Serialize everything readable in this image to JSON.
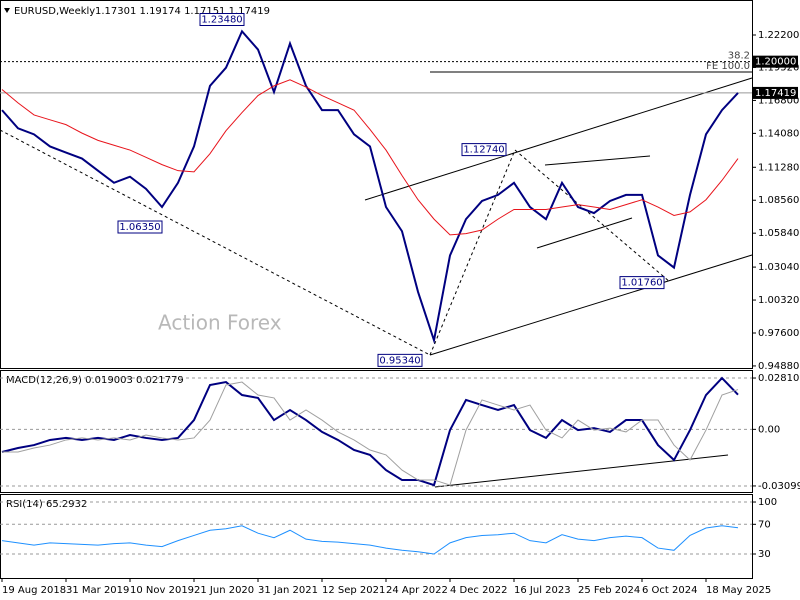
{
  "chart_data": [
    {
      "type": "line",
      "title": "EURUSD,Weekly",
      "subtitle": "1.17301 1.19174 1.17151 1.17419",
      "watermark": "Action Forex",
      "categories": [
        "19 Aug 2018",
        null,
        null,
        null,
        "31 Mar 2019",
        null,
        null,
        null,
        "10 Nov 2019",
        null,
        null,
        null,
        "21 Jun 2020",
        null,
        null,
        null,
        "31 Jan 2021",
        null,
        null,
        null,
        "12 Sep 2021",
        null,
        null,
        null,
        "24 Apr 2022",
        null,
        null,
        null,
        "4 Dec 2022",
        null,
        null,
        null,
        "16 Jul 2023",
        null,
        null,
        null,
        "25 Feb 2024",
        null,
        null,
        null,
        "6 Oct 2024",
        null,
        null,
        null,
        "18 May 2025",
        null,
        null
      ],
      "series": [
        {
          "color": "#000080",
          "values": [
            1.16,
            1.145,
            1.14,
            1.13,
            1.125,
            1.12,
            1.11,
            1.1,
            1.105,
            1.095,
            1.08,
            1.1,
            1.13,
            1.18,
            1.195,
            1.225,
            1.21,
            1.175,
            1.215,
            1.18,
            1.16,
            1.16,
            1.14,
            1.13,
            1.08,
            1.06,
            1.01,
            0.97,
            1.04,
            1.07,
            1.085,
            1.09,
            1.1,
            1.08,
            1.07,
            1.1,
            1.08,
            1.075,
            1.085,
            1.09,
            1.09,
            1.04,
            1.03,
            1.09,
            1.14,
            1.16,
            1.17419
          ]
        },
        {
          "color": "#e8141c",
          "values": [
            1.177,
            1.166,
            1.156,
            1.152,
            1.148,
            1.141,
            1.135,
            1.131,
            1.127,
            1.121,
            1.115,
            1.11,
            1.109,
            1.124,
            1.143,
            1.158,
            1.172,
            1.18,
            1.185,
            1.179,
            1.172,
            1.166,
            1.16,
            1.144,
            1.127,
            1.106,
            1.086,
            1.07,
            1.057,
            1.058,
            1.061,
            1.07,
            1.078,
            1.078,
            1.078,
            1.08,
            1.082,
            1.08,
            1.078,
            1.082,
            1.086,
            1.08,
            1.073,
            1.076,
            1.086,
            1.102,
            1.12
          ]
        }
      ],
      "ylim": [
        0.9471,
        1.2509
      ],
      "yticks": [
        {
          "value": 1.222,
          "label": "1.22200"
        },
        {
          "value": 1.1952,
          "label": "1.19520"
        },
        {
          "value": 1.168,
          "label": "1.16800"
        },
        {
          "value": 1.1408,
          "label": "1.14080"
        },
        {
          "value": 1.1128,
          "label": "1.11280"
        },
        {
          "value": 1.0856,
          "label": "1.08560"
        },
        {
          "value": 1.0584,
          "label": "1.05840"
        },
        {
          "value": 1.0304,
          "label": "1.03040"
        },
        {
          "value": 1.0032,
          "label": "1.00320"
        },
        {
          "value": 0.976,
          "label": "0.97600"
        },
        {
          "value": 0.9488,
          "label": "0.94880"
        }
      ],
      "levels": [
        {
          "value": 1.2,
          "label": "1.20000"
        },
        {
          "value": 1.17419,
          "label": "1.17419"
        }
      ],
      "fib_levels": [
        {
          "value": 1.2,
          "label": "38.2"
        },
        {
          "value": 1.1913,
          "label": "FE 100.0"
        }
      ],
      "annotations": [
        {
          "value": 1.2348,
          "label": "1.23480"
        },
        {
          "value": 1.0635,
          "label": "1.06350"
        },
        {
          "value": 0.9534,
          "label": "0.95340"
        },
        {
          "value": 1.1274,
          "label": "1.12740"
        },
        {
          "value": 1.0176,
          "label": "1.01760"
        }
      ],
      "grid": false
    },
    {
      "type": "line",
      "title": "MACD(12,26,9) 0.019003 0.021779",
      "series": [
        {
          "color": "#000080",
          "values": [
            -0.0124,
            -0.0102,
            -0.0086,
            -0.0058,
            -0.0047,
            -0.0058,
            -0.0047,
            -0.0058,
            -0.0031,
            -0.0047,
            -0.0058,
            -0.0047,
            0.0051,
            0.0243,
            0.0259,
            0.0188,
            0.0172,
            0.0051,
            0.0106,
            0.0051,
            -0.0014,
            -0.0058,
            -0.0113,
            -0.014,
            -0.0223,
            -0.0277,
            -0.0277,
            -0.0305,
            -0.0004,
            0.0161,
            0.0133,
            0.0106,
            0.0133,
            -0.0004,
            -0.0047,
            0.0051,
            -0.0004,
            0.0007,
            -0.0014,
            0.0051,
            0.0051,
            -0.0086,
            -0.0168,
            -0.0004,
            0.0188,
            0.0281,
            0.019
          ]
        },
        {
          "color": "#a0a0a0",
          "values": [
            -0.0124,
            -0.0124,
            -0.0102,
            -0.0086,
            -0.0058,
            -0.0047,
            -0.0058,
            -0.0047,
            -0.0058,
            -0.0031,
            -0.0047,
            -0.0058,
            -0.0047,
            0.0051,
            0.0243,
            0.0259,
            0.0188,
            0.0172,
            0.0051,
            0.0106,
            0.0051,
            -0.0014,
            -0.0058,
            -0.0113,
            -0.014,
            -0.0223,
            -0.0277,
            -0.0277,
            -0.0305,
            -0.0004,
            0.0161,
            0.0133,
            0.0106,
            0.0133,
            -0.0004,
            -0.0047,
            0.0051,
            -0.0004,
            0.0007,
            -0.0014,
            0.0051,
            0.0051,
            -0.0086,
            -0.0168,
            -0.0004,
            0.0188,
            0.0218
          ]
        }
      ],
      "ylim": [
        -0.0343,
        0.0325
      ],
      "yticks": [
        0.028106,
        {
          "value": 0,
          "label": "0.00"
        },
        -0.03099
      ],
      "grid": true
    },
    {
      "type": "line",
      "title": "RSI(14) 65.2932",
      "series": [
        {
          "color": "#1e90ff",
          "values": [
            48,
            45,
            42,
            45,
            44,
            43,
            42,
            44,
            45,
            42,
            40,
            48,
            55,
            62,
            64,
            68,
            58,
            52,
            62,
            50,
            47,
            46,
            44,
            42,
            38,
            35,
            33,
            30,
            45,
            52,
            55,
            56,
            58,
            48,
            45,
            56,
            50,
            48,
            52,
            54,
            52,
            38,
            35,
            55,
            65,
            68,
            65.2932
          ]
        }
      ],
      "ylim": [
        -2.3,
        110.8
      ],
      "yticks": [
        100,
        70,
        30
      ],
      "grid": true
    }
  ]
}
